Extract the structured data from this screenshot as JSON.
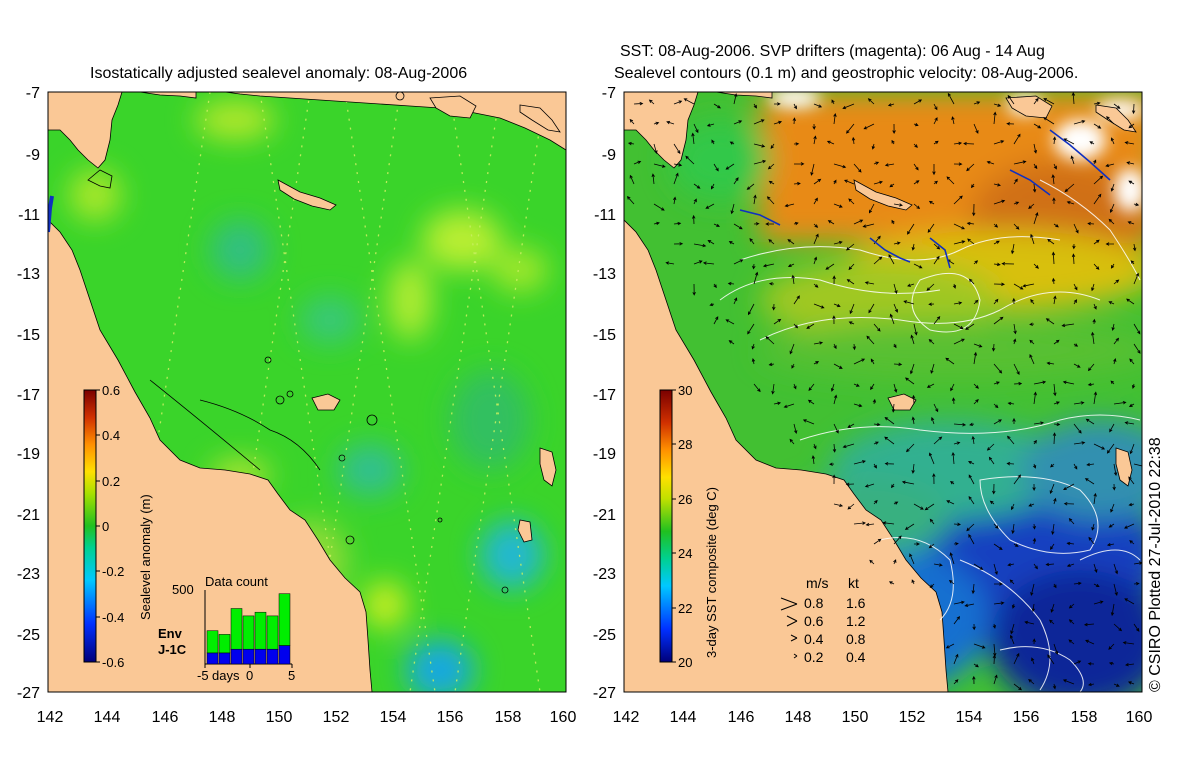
{
  "left_panel": {
    "title": "Isostatically adjusted sealevel anomaly: 08-Aug-2006",
    "colorbar": {
      "label": "Sealevel anomaly (m)",
      "ticks": [
        "0.6",
        "0.4",
        "0.2",
        "0",
        "-0.2",
        "-0.4",
        "-0.6"
      ],
      "range": [
        -0.6,
        0.6
      ]
    },
    "data_count": {
      "title": "Data count",
      "y_max_label": "500",
      "x_tick_labels": [
        "-5",
        "days",
        "0",
        "5"
      ],
      "series_env_label": "Env",
      "series_j1c_label": "J-1C",
      "env_color": "#00ee00",
      "j1c_color": "#0000ee",
      "env_values": [
        0.3,
        0.25,
        0.55,
        0.45,
        0.5,
        0.45,
        0.7
      ],
      "j1c_values": [
        0.15,
        0.15,
        0.2,
        0.2,
        0.2,
        0.2,
        0.25
      ]
    }
  },
  "right_panel": {
    "title_line1": "SST: 08-Aug-2006. SVP drifters (magenta): 06 Aug - 14 Aug",
    "title_line2": "Sealevel contours (0.1 m) and geostrophic velocity: 08-Aug-2006.",
    "colorbar": {
      "label": "3-day SST composite (deg C)",
      "ticks": [
        "30",
        "28",
        "26",
        "24",
        "22",
        "20"
      ],
      "range": [
        20,
        30
      ]
    },
    "velocity_legend": {
      "header_ms": "m/s",
      "header_kt": "kt",
      "rows": [
        {
          "ms": "0.8",
          "kt": "1.6"
        },
        {
          "ms": "0.6",
          "kt": "1.2"
        },
        {
          "ms": "0.4",
          "kt": "0.8"
        },
        {
          "ms": "0.2",
          "kt": "0.4"
        }
      ]
    }
  },
  "axes": {
    "lat_labels": [
      "-7",
      "-9",
      "-11",
      "-13",
      "-15",
      "-17",
      "-19",
      "-21",
      "-23",
      "-25",
      "-27"
    ],
    "lon_labels": [
      "142",
      "144",
      "146",
      "148",
      "150",
      "152",
      "154",
      "156",
      "158",
      "160"
    ],
    "lat_range": [
      -27,
      -7
    ],
    "lon_range": [
      142,
      160
    ]
  },
  "credit": "© CSIRO Plotted 27-Jul-2010 22:38",
  "colors": {
    "land": "#fac896",
    "sla_background": "#3ad42a",
    "sst_background": "#42c032",
    "sst_warm": "#e08a1c",
    "sst_cool": "#1030b0"
  }
}
